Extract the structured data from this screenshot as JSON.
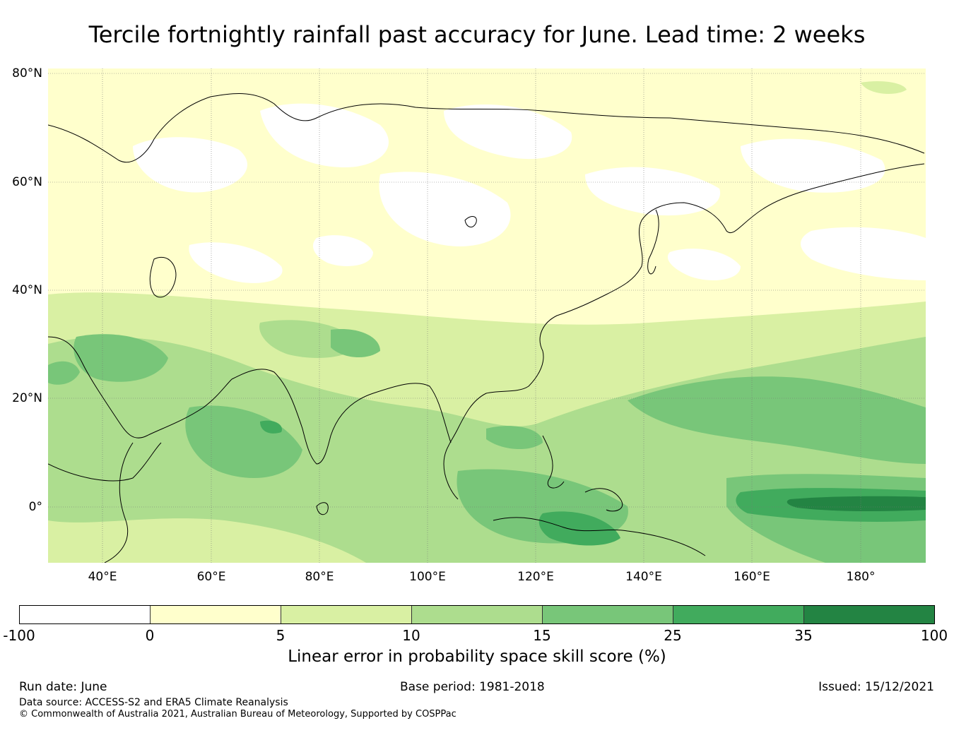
{
  "title": "Tercile fortnightly rainfall past accuracy for June. Lead time: 2 weeks",
  "map": {
    "lat_labels": [
      "80°N",
      "60°N",
      "40°N",
      "20°N",
      "0°"
    ],
    "lon_labels": [
      "40°E",
      "60°E",
      "80°E",
      "100°E",
      "120°E",
      "140°E",
      "160°E",
      "180°"
    ],
    "background_color": "#ffffcc"
  },
  "colorbar": {
    "ticks": [
      "-100",
      "0",
      "5",
      "10",
      "15",
      "25",
      "35",
      "100"
    ],
    "colors": [
      "#ffffff",
      "#ffffcc",
      "#d9f0a3",
      "#addd8e",
      "#78c679",
      "#41ab5d",
      "#238443"
    ],
    "label": "Linear error in probability space skill score (%)"
  },
  "footer": {
    "run_date": "Run date: June",
    "base_period": "Base period: 1981-2018",
    "issued": "Issued: 15/12/2021",
    "data_source": "Data source: ACCESS-S2 and ERA5 Climate Reanalysis",
    "copyright": "© Commonwealth of Australia 2021, Australian Bureau of Meteorology, Supported by COSPPac"
  }
}
